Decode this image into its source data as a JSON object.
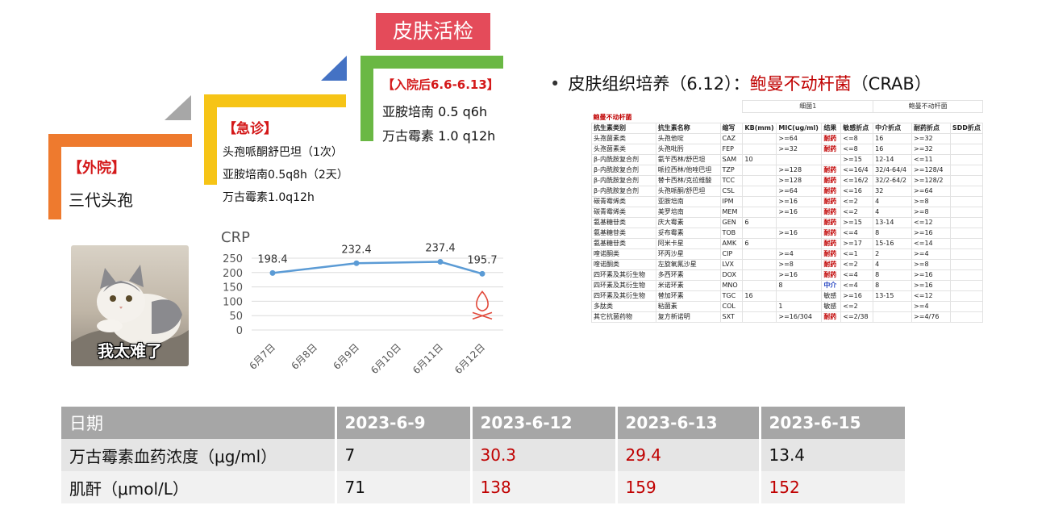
{
  "timeline": {
    "outside_label": "【外院】",
    "outside_items": [
      "三代头孢"
    ],
    "er_label": "【急诊】",
    "er_items": [
      "头孢哌酮舒巴坦（1次）",
      "亚胺培南0.5q8h（2天）",
      "万古霉素1.0q12h"
    ],
    "admit_label": "【入院后6.6-6.13】",
    "admit_items": [
      "亚胺培南 0.5 q6h",
      "万古霉素 1.0 q12h"
    ],
    "biopsy_label": "皮肤活检",
    "colors": {
      "outside": "#ee7a2e",
      "er": "#f6c416",
      "admit": "#6ab844",
      "biopsy": "#e44b5a"
    }
  },
  "cat_image": {
    "caption": "我太难了"
  },
  "chart_data": {
    "type": "line",
    "title": "CRP",
    "categories": [
      "6月7日",
      "6月8日",
      "6月9日",
      "6月10日",
      "6月11日",
      "6月12日"
    ],
    "series": [
      {
        "values": [
          198.4,
          null,
          232.4,
          null,
          237.4,
          195.7
        ]
      }
    ],
    "data_labels": [
      "198.4",
      "232.4",
      "237.4",
      "195.7"
    ],
    "ylim": [
      0,
      250
    ],
    "yticks": [
      0,
      50,
      100,
      150,
      200,
      250
    ],
    "grid": true,
    "line_color": "#5b9bd5",
    "annotation_icon": "fire-icon"
  },
  "culture": {
    "bullet": "•",
    "heading_prefix": "皮肤组织培养（6.12）：",
    "organism": "鲍曼不动杆菌",
    "organism_abbr": "（CRAB）",
    "table": {
      "top_labels": [
        "细菌1",
        "鲍曼不动杆菌"
      ],
      "organism_row": "鲍曼不动杆菌",
      "columns": [
        "抗生素类别",
        "抗生素名称",
        "缩写",
        "KB(mm)",
        "MIC(ug/ml)",
        "结果",
        "敏感折点",
        "中介折点",
        "耐药折点",
        "SDD折点"
      ],
      "rows": [
        [
          "头孢菌素类",
          "头孢他啶",
          "CAZ",
          "",
          ">=64",
          "耐药",
          "<=8",
          "16",
          ">=32",
          ""
        ],
        [
          "头孢菌素类",
          "头孢吡肟",
          "FEP",
          "",
          ">=32",
          "耐药",
          "<=8",
          "16",
          ">=32",
          ""
        ],
        [
          "β-内酰胺复合剂",
          "氨苄西林/舒巴坦",
          "SAM",
          "10",
          "",
          "",
          ">=15",
          "12-14",
          "<=11",
          ""
        ],
        [
          "β-内酰胺复合剂",
          "哌拉西林/他唑巴坦",
          "TZP",
          "",
          ">=128",
          "耐药",
          "<=16/4",
          "32/4-64/4",
          ">=128/4",
          ""
        ],
        [
          "β-内酰胺复合剂",
          "替卡西林/克拉维酸",
          "TCC",
          "",
          ">=128",
          "耐药",
          "<=16/2",
          "32/2-64/2",
          ">=128/2",
          ""
        ],
        [
          "β-内酰胺复合剂",
          "头孢哌酮/舒巴坦",
          "CSL",
          "",
          ">=64",
          "耐药",
          "<=16",
          "32",
          ">=64",
          ""
        ],
        [
          "碳青霉烯类",
          "亚胺培南",
          "IPM",
          "",
          ">=16",
          "耐药",
          "<=2",
          "4",
          ">=8",
          ""
        ],
        [
          "碳青霉烯类",
          "美罗培南",
          "MEM",
          "",
          ">=16",
          "耐药",
          "<=2",
          "4",
          ">=8",
          ""
        ],
        [
          "氨基糖苷类",
          "庆大霉素",
          "GEN",
          "6",
          "",
          "耐药",
          ">=15",
          "13-14",
          "<=12",
          ""
        ],
        [
          "氨基糖苷类",
          "妥布霉素",
          "TOB",
          "",
          ">=16",
          "耐药",
          "<=4",
          "8",
          ">=16",
          ""
        ],
        [
          "氨基糖苷类",
          "阿米卡星",
          "AMK",
          "6",
          "",
          "耐药",
          ">=17",
          "15-16",
          "<=14",
          ""
        ],
        [
          "喹诺酮类",
          "环丙沙星",
          "CIP",
          "",
          ">=4",
          "耐药",
          "<=1",
          "2",
          ">=4",
          ""
        ],
        [
          "喹诺酮类",
          "左旋氧氟沙星",
          "LVX",
          "",
          ">=8",
          "耐药",
          "<=2",
          "4",
          ">=8",
          ""
        ],
        [
          "四环素及其衍生物",
          "多西环素",
          "DOX",
          "",
          ">=16",
          "耐药",
          "<=4",
          "8",
          ">=16",
          ""
        ],
        [
          "四环素及其衍生物",
          "米诺环素",
          "MNO",
          "",
          "8",
          "中介",
          "<=4",
          "8",
          ">=16",
          ""
        ],
        [
          "四环素及其衍生物",
          "替加环素",
          "TGC",
          "16",
          "",
          "敏感",
          ">=16",
          "13-15",
          "<=12",
          ""
        ],
        [
          "多肽类",
          "粘菌素",
          "COL",
          "",
          "1",
          "敏感",
          "<=2",
          "",
          ">=4",
          ""
        ],
        [
          "其它抗菌药物",
          "复方新诺明",
          "SXT",
          "",
          ">=16/304",
          "耐药",
          "<=2/38",
          "",
          ">=4/76",
          ""
        ]
      ]
    }
  },
  "lab_table": {
    "headers": [
      "日期",
      "2023-6-9",
      "2023-6-12",
      "2023-6-13",
      "2023-6-15"
    ],
    "rows": [
      {
        "label": "万古霉素血药浓度（μg/ml）",
        "values": [
          "7",
          "30.3",
          "29.4",
          "13.4"
        ]
      },
      {
        "label": "肌酐（μmol/L）",
        "values": [
          "71",
          "138",
          "159",
          "152"
        ]
      }
    ],
    "highlight_color": "#c00000"
  }
}
